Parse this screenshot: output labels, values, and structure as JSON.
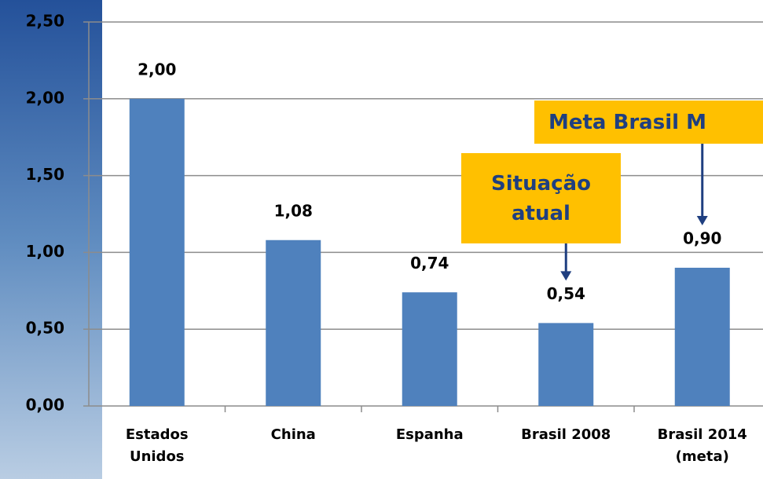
{
  "chart_data": {
    "type": "bar",
    "categories": [
      "Estados Unidos",
      "China",
      "Espanha",
      "Brasil 2008",
      "Brasil 2014 (meta)"
    ],
    "values": [
      2.0,
      1.08,
      0.74,
      0.54,
      0.9
    ],
    "value_labels": [
      "2,00",
      "1,08",
      "0,74",
      "0,54",
      "0,90"
    ],
    "color": "#4f81bd",
    "ylim": [
      0,
      2.5
    ],
    "yticks": [
      {
        "value": 0,
        "label": "0,00"
      },
      {
        "value": 0.5,
        "label": "0,50"
      },
      {
        "value": 1,
        "label": "1,00"
      },
      {
        "value": 1.5,
        "label": "1,50"
      },
      {
        "value": 2,
        "label": "2,00"
      },
      {
        "value": 2.5,
        "label": "2,50"
      }
    ],
    "grid": true,
    "annotations": [
      {
        "text": "Situação atual",
        "category": 3
      },
      {
        "text": "Meta Brasil M",
        "category": 4
      }
    ]
  }
}
